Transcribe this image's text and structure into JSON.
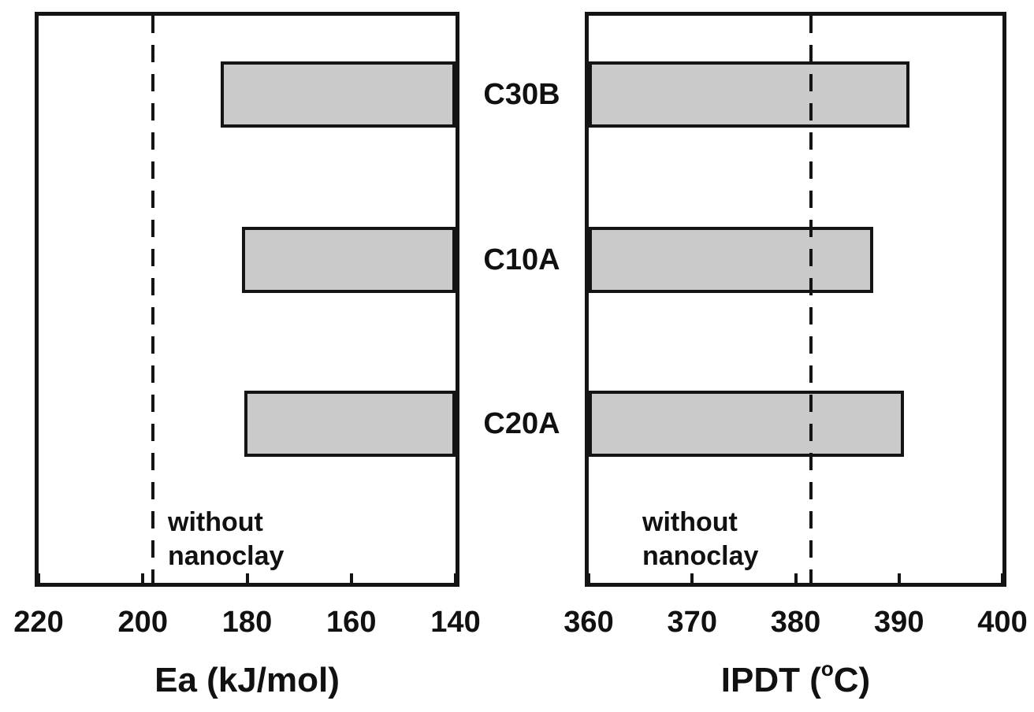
{
  "figure": {
    "background": "#ffffff",
    "bar_fill": "#cacaca",
    "bar_border_color": "#141414",
    "axis_color": "#141414",
    "text_color": "#111111"
  },
  "chart_data": [
    {
      "type": "bar",
      "orientation": "horizontal",
      "panel": "left",
      "categories": [
        "C30B",
        "C10A",
        "C20A"
      ],
      "values": [
        185,
        181,
        180.5
      ],
      "xlabel": "Ea (kJ/mol)",
      "xlabel_parts": {
        "prefix": "Ea (kJ/mol)",
        "sup": "",
        "suffix": ""
      },
      "xlim": [
        220,
        140
      ],
      "x_ticks": [
        220,
        200,
        180,
        160,
        140
      ],
      "x_tick_labels": [
        "220",
        "200",
        "180",
        "160",
        "140"
      ],
      "axis_reversed": true,
      "bars_anchor": "right",
      "grid": false,
      "legend": false,
      "reference_line": {
        "value": 198,
        "style": "dashed",
        "label": "without nanoclay",
        "label_lines": [
          "without",
          "nanoclay"
        ]
      }
    },
    {
      "type": "bar",
      "orientation": "horizontal",
      "panel": "right",
      "categories": [
        "C30B",
        "C10A",
        "C20A"
      ],
      "values": [
        391,
        387.5,
        390.5
      ],
      "xlabel": "IPDT (°C)",
      "xlabel_parts": {
        "prefix": "IPDT (",
        "sup": "o",
        "suffix": "C)"
      },
      "xlim": [
        360,
        400
      ],
      "x_ticks": [
        360,
        370,
        380,
        390,
        400
      ],
      "x_tick_labels": [
        "360",
        "370",
        "380",
        "390",
        "400"
      ],
      "axis_reversed": false,
      "bars_anchor": "left",
      "grid": false,
      "legend": false,
      "reference_line": {
        "value": 381.5,
        "style": "dashed",
        "label": "without nanoclay",
        "label_lines": [
          "without",
          "nanoclay"
        ]
      }
    }
  ]
}
